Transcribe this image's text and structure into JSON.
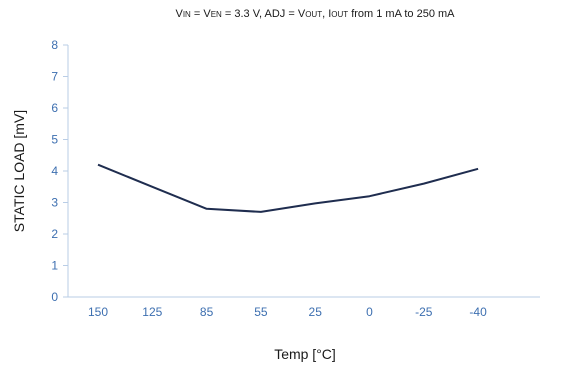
{
  "chart_data": {
    "type": "line",
    "title": {
      "vin_main": "V",
      "vin_sub": "IN",
      "eq1": " = V",
      "ven_sub": "EN",
      "mid": " = 3.3 V, ADJ = V",
      "vout_sub": "OUT",
      "gap": ",  I",
      "iout_sub": "OUT",
      "tail": "  from 1 mA to 250 mA"
    },
    "xlabel": "Temp [°C]",
    "ylabel": "STATIC LOAD [mV]",
    "categories": [
      "150",
      "125",
      "85",
      "55",
      "25",
      "0",
      "-25",
      "-40"
    ],
    "ylim": [
      0,
      8
    ],
    "y_ticks": [
      0,
      1,
      2,
      3,
      4,
      5,
      6,
      7,
      8
    ],
    "grid": false,
    "series": [
      {
        "values": [
          4.2,
          3.5,
          2.8,
          2.7,
          2.97,
          3.2,
          3.6,
          4.07
        ],
        "color": "#1f2d4f"
      }
    ],
    "axis_color": "#b9cde6",
    "tick_label_color": "#3d6fb0"
  }
}
